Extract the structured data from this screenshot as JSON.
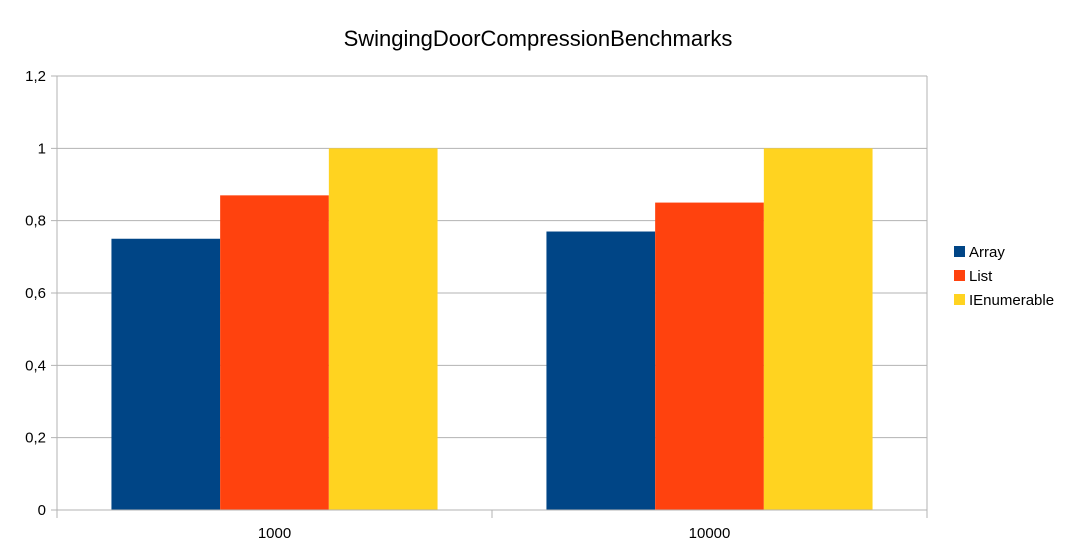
{
  "chart_data": {
    "type": "bar",
    "title": "SwingingDoorCompressionBenchmarks",
    "xlabel": "",
    "ylabel": "",
    "categories": [
      "1000",
      "10000"
    ],
    "series": [
      {
        "name": "Array",
        "color": "#004586",
        "values": [
          0.75,
          0.77
        ]
      },
      {
        "name": "List",
        "color": "#ff420e",
        "values": [
          0.87,
          0.85
        ]
      },
      {
        "name": "IEnumerable",
        "color": "#ffd320",
        "values": [
          1.0,
          1.0
        ]
      }
    ],
    "ylim": [
      0,
      1.2
    ],
    "yticks": [
      0,
      0.2,
      0.4,
      0.6,
      0.8,
      1,
      1.2
    ],
    "ytick_labels": [
      "0",
      "0,2",
      "0,4",
      "0,6",
      "0,8",
      "1",
      "1,2"
    ],
    "grid": true,
    "legend_position": "right"
  }
}
